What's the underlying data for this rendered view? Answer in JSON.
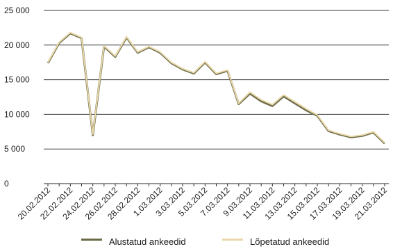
{
  "chart_data": {
    "type": "line",
    "title": "",
    "xlabel": "",
    "ylabel": "",
    "ylim": [
      0,
      25000
    ],
    "yticks": [
      0,
      5000,
      10000,
      15000,
      20000,
      25000
    ],
    "ytick_labels": [
      "0",
      "5 000",
      "10 000",
      "15 000",
      "20 000",
      "25 000"
    ],
    "grid": true,
    "legend_position": "bottom",
    "x": [
      "20.02.2012",
      "21.02.2012",
      "22.02.2012",
      "23.02.2012",
      "24.02.2012",
      "25.02.2012",
      "26.02.2012",
      "27.02.2012",
      "28.02.2012",
      "29.02.2012",
      "1.03.2012",
      "2.03.2012",
      "3.03.2012",
      "4.03.2012",
      "5.03.2012",
      "6.03.2012",
      "7.03.2012",
      "8.03.2012",
      "9.03.2012",
      "10.03.2012",
      "11.03.2012",
      "12.03.2012",
      "13.03.2012",
      "14.03.2012",
      "15.03.2012",
      "16.03.2012",
      "17.03.2012",
      "18.03.2012",
      "19.03.2012",
      "20.03.2012",
      "21.03.2012"
    ],
    "x_tick_labels": [
      "20.02.2012",
      "22.02.2012",
      "24.02.2012",
      "26.02.2012",
      "28.02.2012",
      "1.03.2012",
      "3.03.2012",
      "5.03.2012",
      "7.03.2012",
      "9.03.2012",
      "11.03.2012",
      "13.03.2012",
      "15.03.2012",
      "17.03.2012",
      "19.03.2012",
      "21.03.2012"
    ],
    "series": [
      {
        "name": "Alustatud ankeedid",
        "color": "#6b6a48",
        "values": [
          17400,
          20300,
          21700,
          21000,
          7000,
          19800,
          18300,
          21100,
          18900,
          19700,
          18900,
          17400,
          16500,
          15900,
          17500,
          15800,
          16300,
          11500,
          13000,
          11900,
          11200,
          12600,
          11600,
          10600,
          9800,
          7600,
          7100,
          6700,
          6900,
          7400,
          5800
        ]
      },
      {
        "name": "Lõpetatud ankeedid",
        "color": "#e9d8a9",
        "values": [
          17500,
          20400,
          21800,
          21100,
          7100,
          19900,
          18400,
          21200,
          19000,
          19800,
          19000,
          17500,
          16600,
          16000,
          17600,
          15900,
          16400,
          11600,
          13200,
          12100,
          11400,
          12800,
          11800,
          10800,
          9900,
          7700,
          7200,
          6800,
          7000,
          7500,
          5900
        ]
      }
    ]
  }
}
